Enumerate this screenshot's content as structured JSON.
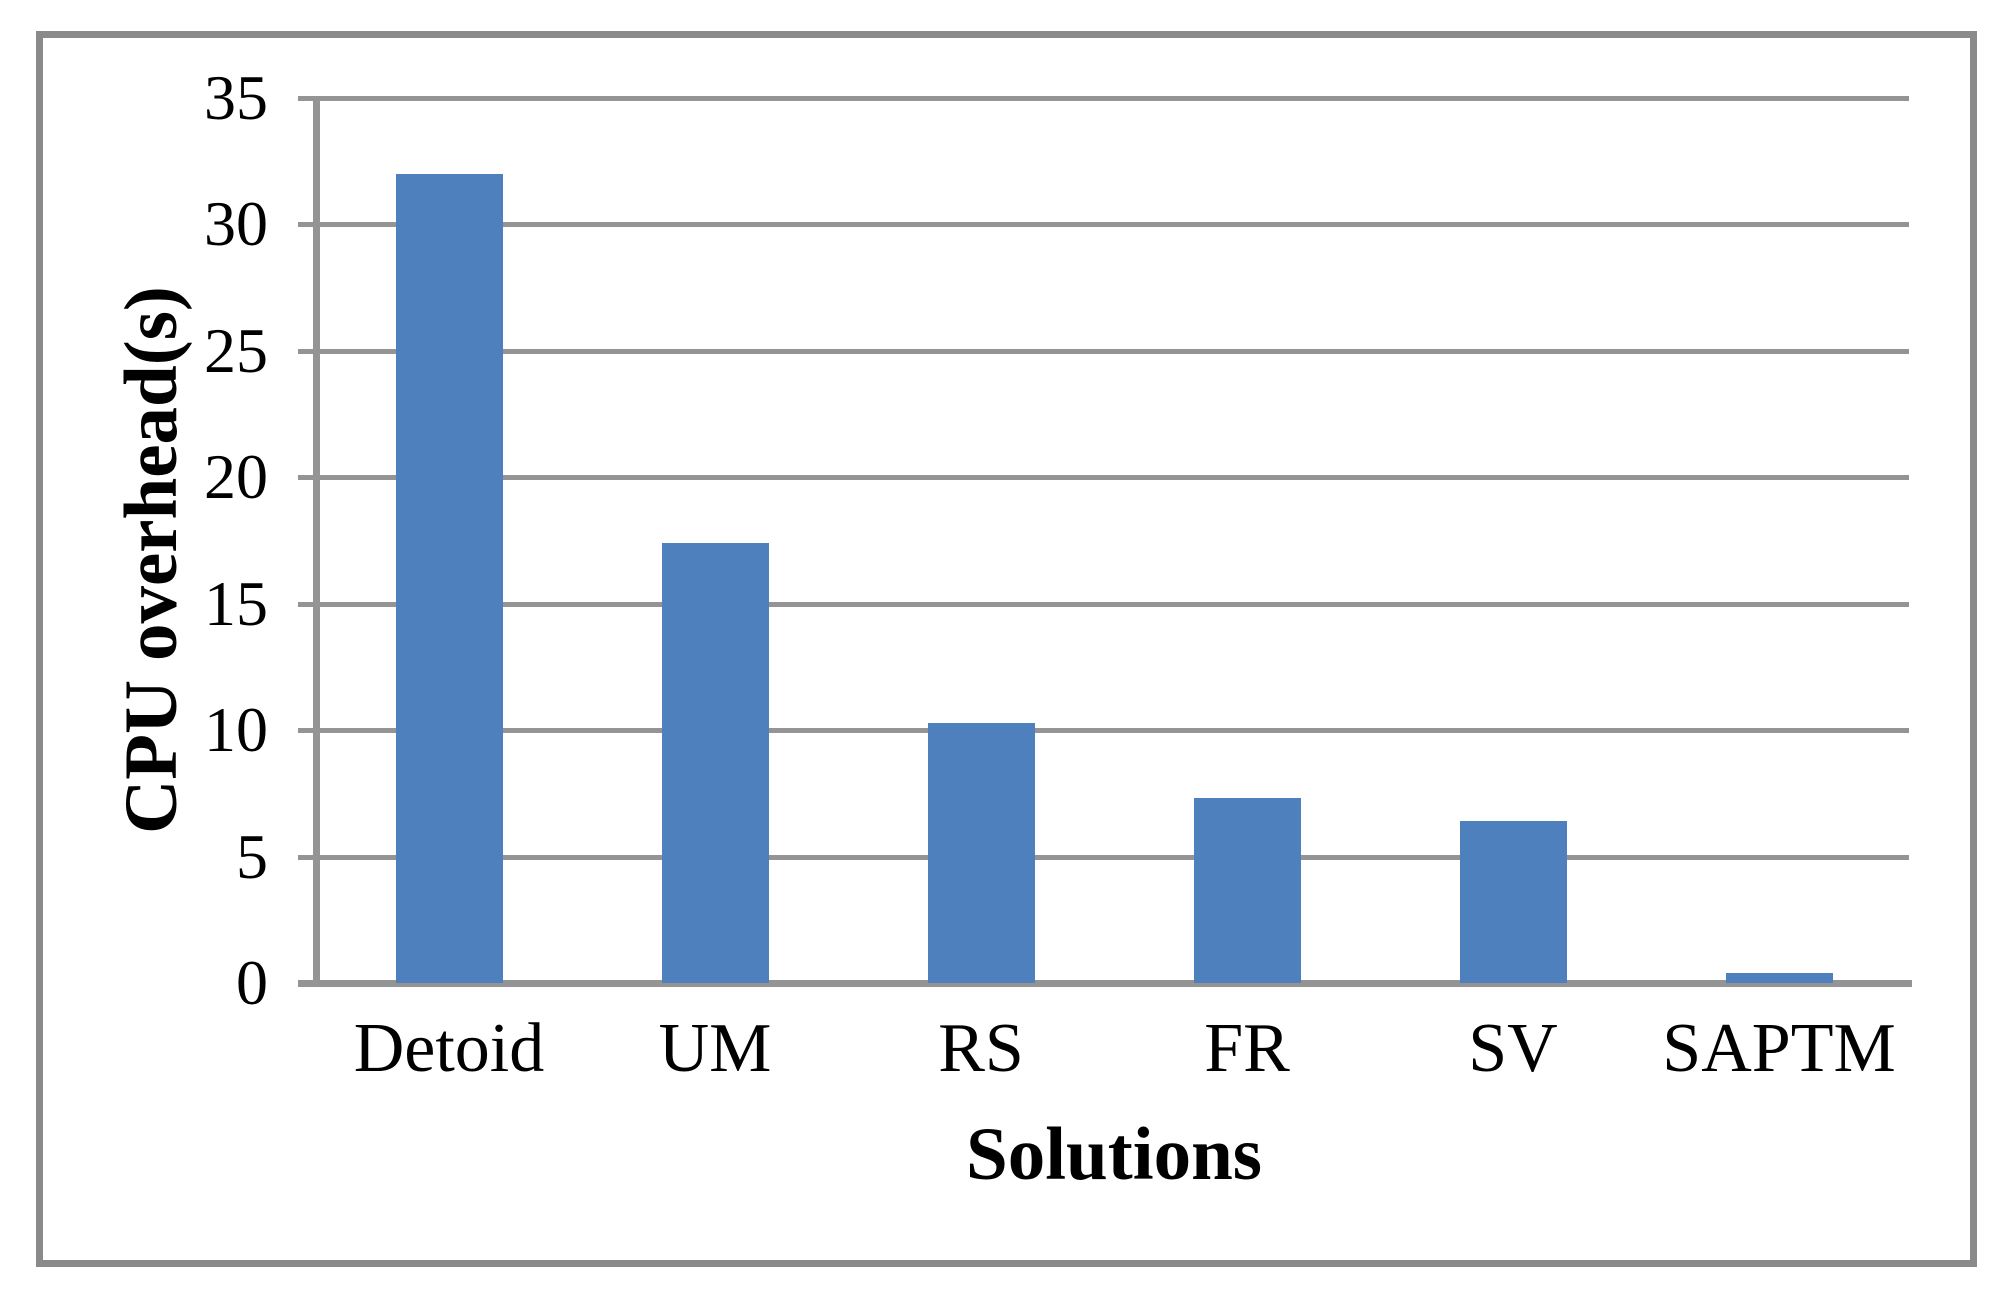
{
  "figure": {
    "background_color": "#ffffff",
    "border_color": "#8a8a8a"
  },
  "chart_data": {
    "type": "bar",
    "title": "",
    "categories": [
      "Detoid",
      "UM",
      "RS",
      "FR",
      "SV",
      "SAPTM"
    ],
    "values": [
      32,
      17.4,
      10.3,
      7.3,
      6.4,
      0.4
    ],
    "xlabel": "Solutions",
    "ylabel": "CPU overhead(s)",
    "ylim": [
      0,
      35
    ],
    "ytick_step": 5,
    "ytick_labels": [
      "0",
      "5",
      "10",
      "15",
      "20",
      "25",
      "30",
      "35"
    ],
    "grid": true,
    "legend": false,
    "bar_color": "#4e80bd",
    "grid_color": "#949494",
    "axis_color": "#949494"
  }
}
